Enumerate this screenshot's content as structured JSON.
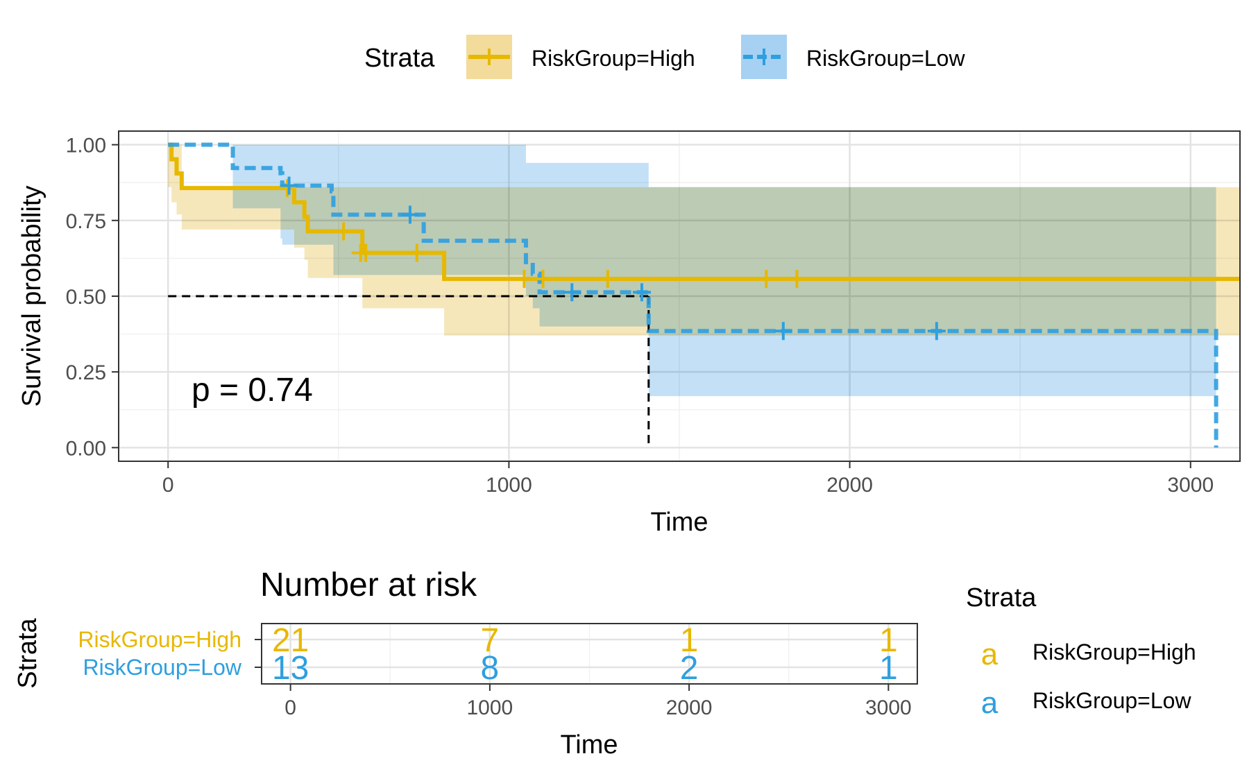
{
  "colors": {
    "high": "#E7B800",
    "low": "#2E9FDF",
    "high_band": "#F2DB9B",
    "low_band": "#A6D1F2",
    "overlap_band": "#A7BFA9",
    "panel_border": "#333333",
    "grid_major": "#E3E3E3",
    "grid_minor": "#F1F1F1",
    "text": "#000000",
    "tick_text": "#4D4D4D"
  },
  "legend": {
    "title": "Strata",
    "items": [
      {
        "label": "RiskGroup=High",
        "color_key": "high",
        "line": "solid"
      },
      {
        "label": "RiskGroup=Low",
        "color_key": "low",
        "line": "dashed"
      }
    ]
  },
  "chart_data": [
    {
      "type": "line",
      "chart_kind": "kaplan-meier survival curve",
      "title": "",
      "xlabel": "Time",
      "ylabel": "Survival probability",
      "xlim": [
        -145,
        3145
      ],
      "ylim": [
        -0.045,
        1.045
      ],
      "x_ticks": [
        0,
        1000,
        2000,
        3000
      ],
      "x_tick_labels": [
        "0",
        "1000",
        "2000",
        "3000"
      ],
      "y_ticks": [
        0,
        0.25,
        0.5,
        0.75,
        1
      ],
      "y_tick_labels": [
        "0.00",
        "0.25",
        "0.50",
        "0.75",
        "1.00"
      ],
      "grid": true,
      "legend_position": "top",
      "annotation": "p = 0.74",
      "median_survival": {
        "y": 0.5,
        "x_end": 1410
      },
      "series": [
        {
          "name": "RiskGroup=High",
          "line": "solid",
          "steps": [
            [
              0,
              1.0
            ],
            [
              10,
              0.952
            ],
            [
              25,
              0.905
            ],
            [
              40,
              0.857
            ],
            [
              370,
              0.81
            ],
            [
              400,
              0.762
            ],
            [
              410,
              0.714
            ],
            [
              570,
              0.643
            ],
            [
              810,
              0.557
            ],
            [
              3145,
              0.557
            ]
          ],
          "ci_band": [
            [
              0,
              1.0,
              0.86
            ],
            [
              10,
              1.0,
              0.81
            ],
            [
              25,
              1.0,
              0.77
            ],
            [
              40,
              0.86,
              0.72
            ],
            [
              190,
              0.86,
              0.72
            ],
            [
              370,
              0.86,
              0.66
            ],
            [
              400,
              0.86,
              0.62
            ],
            [
              410,
              0.86,
              0.56
            ],
            [
              570,
              0.86,
              0.46
            ],
            [
              810,
              0.86,
              0.37
            ],
            [
              3145,
              0.86,
              0.37
            ]
          ],
          "censor_marks": [
            [
              350,
              0.857
            ],
            [
              515,
              0.714
            ],
            [
              565,
              0.643
            ],
            [
              580,
              0.643
            ],
            [
              730,
              0.643
            ],
            [
              1045,
              0.557
            ],
            [
              1100,
              0.557
            ],
            [
              1290,
              0.557
            ],
            [
              1755,
              0.557
            ],
            [
              1845,
              0.557
            ]
          ]
        },
        {
          "name": "RiskGroup=Low",
          "line": "dashed",
          "steps": [
            [
              0,
              1.0
            ],
            [
              190,
              0.923
            ],
            [
              330,
              0.906
            ],
            [
              335,
              0.865
            ],
            [
              480,
              0.846
            ],
            [
              485,
              0.769
            ],
            [
              750,
              0.683
            ],
            [
              1050,
              0.603
            ],
            [
              1070,
              0.574
            ],
            [
              1090,
              0.513
            ],
            [
              1410,
              0.385
            ],
            [
              3075,
              0.385
            ],
            [
              3075,
              0.0
            ]
          ],
          "ci_band": [
            [
              0,
              1.0,
              1.0
            ],
            [
              190,
              1.0,
              0.79
            ],
            [
              330,
              1.0,
              0.69
            ],
            [
              335,
              1.0,
              0.67
            ],
            [
              480,
              1.0,
              0.67
            ],
            [
              485,
              1.0,
              0.57
            ],
            [
              750,
              1.0,
              0.57
            ],
            [
              1050,
              0.94,
              0.5
            ],
            [
              1070,
              0.94,
              0.46
            ],
            [
              1090,
              0.94,
              0.4
            ],
            [
              1410,
              0.86,
              0.17
            ],
            [
              3075,
              0.86,
              0.17
            ]
          ],
          "censor_marks": [
            [
              355,
              0.865
            ],
            [
              710,
              0.769
            ],
            [
              1185,
              0.513
            ],
            [
              1390,
              0.513
            ],
            [
              1805,
              0.385
            ],
            [
              2255,
              0.385
            ]
          ]
        }
      ]
    },
    {
      "type": "table",
      "title": "Number at risk",
      "xlabel": "Time",
      "ylabel": "Strata",
      "xlim": [
        -145,
        3145
      ],
      "x_ticks": [
        0,
        1000,
        2000,
        3000
      ],
      "x_tick_labels": [
        "0",
        "1000",
        "2000",
        "3000"
      ],
      "rows": [
        {
          "name": "RiskGroup=High",
          "color_key": "high",
          "counts": [
            "21",
            "7",
            "1",
            "1"
          ]
        },
        {
          "name": "RiskGroup=Low",
          "color_key": "low",
          "counts": [
            "13",
            "8",
            "2",
            "1"
          ]
        }
      ],
      "legend": {
        "title": "Strata",
        "symbol": "a",
        "items": [
          {
            "label": "RiskGroup=High",
            "color_key": "high"
          },
          {
            "label": "RiskGroup=Low",
            "color_key": "low"
          }
        ]
      }
    }
  ]
}
